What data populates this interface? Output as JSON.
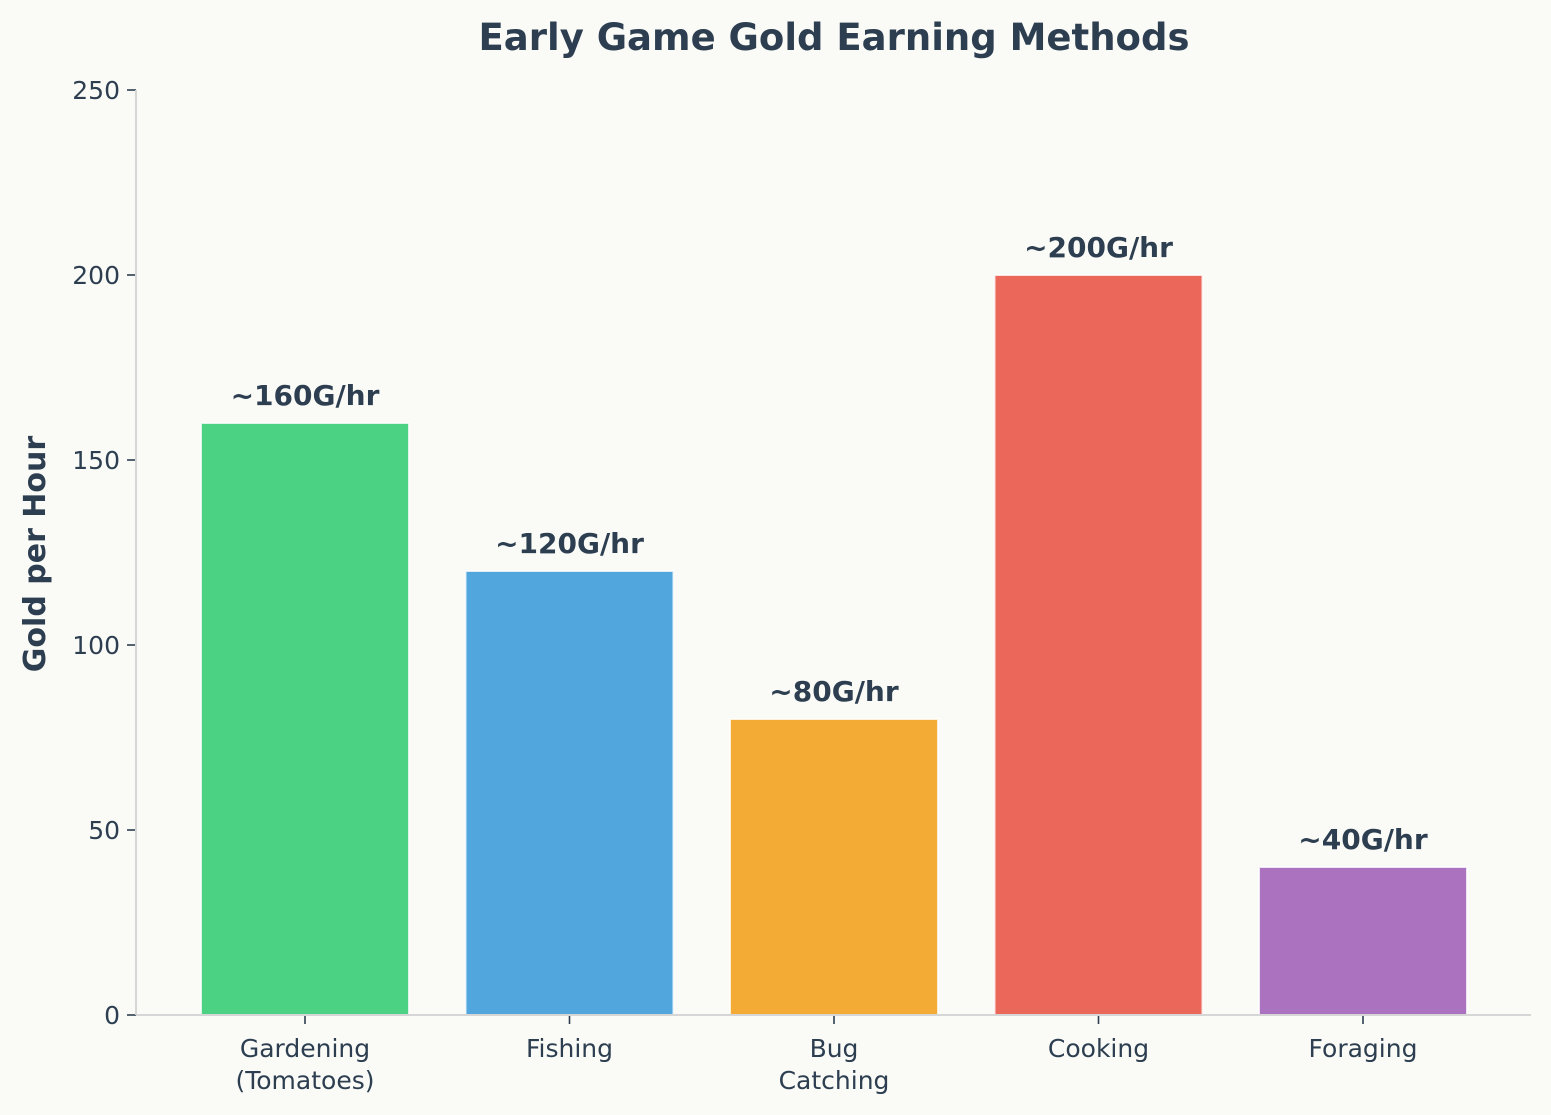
{
  "chart_data": {
    "type": "bar",
    "title": "Early Game Gold Earning Methods",
    "xlabel": "",
    "ylabel": "Gold per Hour",
    "ylim": [
      0,
      250
    ],
    "yticks": [
      0,
      50,
      100,
      150,
      200,
      250
    ],
    "grid": false,
    "legend": "none",
    "categories": [
      [
        "Gardening",
        "(Tomatoes)"
      ],
      [
        "Fishing"
      ],
      [
        "Bug",
        "Catching"
      ],
      [
        "Cooking"
      ],
      [
        "Foraging"
      ]
    ],
    "values": [
      160,
      120,
      80,
      200,
      40
    ],
    "data_labels": [
      "~160G/hr",
      "~120G/hr",
      "~80G/hr",
      "~200G/hr",
      "~40G/hr"
    ],
    "colors": [
      "#4cd283",
      "#52a6de",
      "#f4ab35",
      "#eb675a",
      "#ab72bf"
    ]
  },
  "colors": {
    "background": "#fafaf6",
    "text": "#2c3e50",
    "axis": "#d6d6d6"
  }
}
